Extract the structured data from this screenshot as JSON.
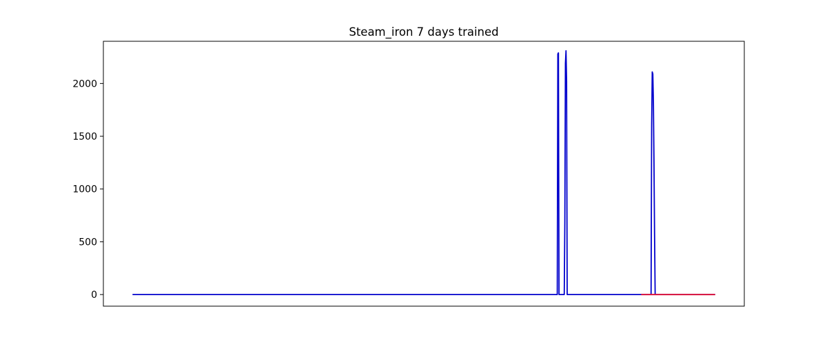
{
  "chart_data": {
    "type": "line",
    "title": "Steam_iron 7 days trained",
    "xlabel": "",
    "ylabel": "",
    "ylim": [
      -110,
      2400
    ],
    "xlim": [
      -0.05,
      1.05
    ],
    "x_ticks_visible": false,
    "yticks": [
      0,
      500,
      1000,
      1500,
      2000
    ],
    "ytick_labels": [
      "0",
      "500",
      "1000",
      "1500",
      "2000"
    ],
    "grid": false,
    "legend": "none",
    "series": [
      {
        "color": "#0000cc",
        "points": [
          [
            0.0,
            0
          ],
          [
            0.729,
            0
          ],
          [
            0.73,
            2280
          ],
          [
            0.731,
            2290
          ],
          [
            0.732,
            0
          ],
          [
            0.741,
            0
          ],
          [
            0.742,
            680
          ],
          [
            0.743,
            2190
          ],
          [
            0.744,
            2310
          ],
          [
            0.745,
            2020
          ],
          [
            0.746,
            0
          ],
          [
            0.89,
            0
          ],
          [
            0.891,
            1600
          ],
          [
            0.892,
            2110
          ],
          [
            0.893,
            2090
          ],
          [
            0.894,
            1820
          ],
          [
            0.895,
            1250
          ],
          [
            0.896,
            560
          ],
          [
            0.897,
            0
          ],
          [
            1.0,
            0
          ]
        ]
      },
      {
        "color": "#dc143c",
        "points": [
          [
            0.873,
            0
          ],
          [
            1.0,
            0
          ]
        ]
      }
    ]
  }
}
